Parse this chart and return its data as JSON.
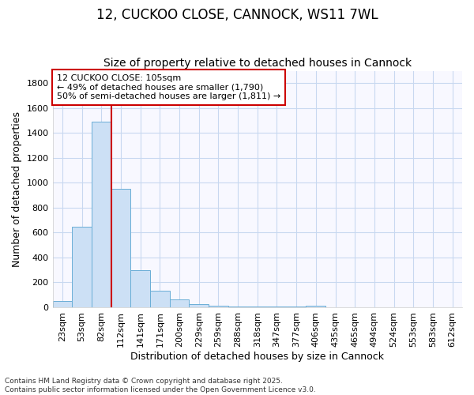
{
  "title1": "12, CUCKOO CLOSE, CANNOCK, WS11 7WL",
  "title2": "Size of property relative to detached houses in Cannock",
  "xlabel": "Distribution of detached houses by size in Cannock",
  "ylabel": "Number of detached properties",
  "categories": [
    "23sqm",
    "53sqm",
    "82sqm",
    "112sqm",
    "141sqm",
    "171sqm",
    "200sqm",
    "229sqm",
    "259sqm",
    "288sqm",
    "318sqm",
    "347sqm",
    "377sqm",
    "406sqm",
    "435sqm",
    "465sqm",
    "494sqm",
    "524sqm",
    "553sqm",
    "583sqm",
    "612sqm"
  ],
  "values": [
    50,
    650,
    1490,
    950,
    295,
    135,
    65,
    25,
    15,
    5,
    5,
    5,
    5,
    15,
    0,
    0,
    0,
    0,
    0,
    0,
    0
  ],
  "bar_color": "#cce0f5",
  "bar_edge_color": "#6aaed6",
  "annotation_line1": "12 CUCKOO CLOSE: 105sqm",
  "annotation_line2": "← 49% of detached houses are smaller (1,790)",
  "annotation_line3": "50% of semi-detached houses are larger (1,811) →",
  "annotation_box_color": "#ffffff",
  "annotation_box_edge": "#cc0000",
  "footer1": "Contains HM Land Registry data © Crown copyright and database right 2025.",
  "footer2": "Contains public sector information licensed under the Open Government Licence v3.0.",
  "bg_color": "#ffffff",
  "plot_bg_color": "#f8f8ff",
  "grid_color": "#c8d8f0",
  "ylim": [
    0,
    1900
  ],
  "title_fontsize": 12,
  "subtitle_fontsize": 10,
  "tick_fontsize": 8,
  "ylabel_fontsize": 9,
  "xlabel_fontsize": 9
}
